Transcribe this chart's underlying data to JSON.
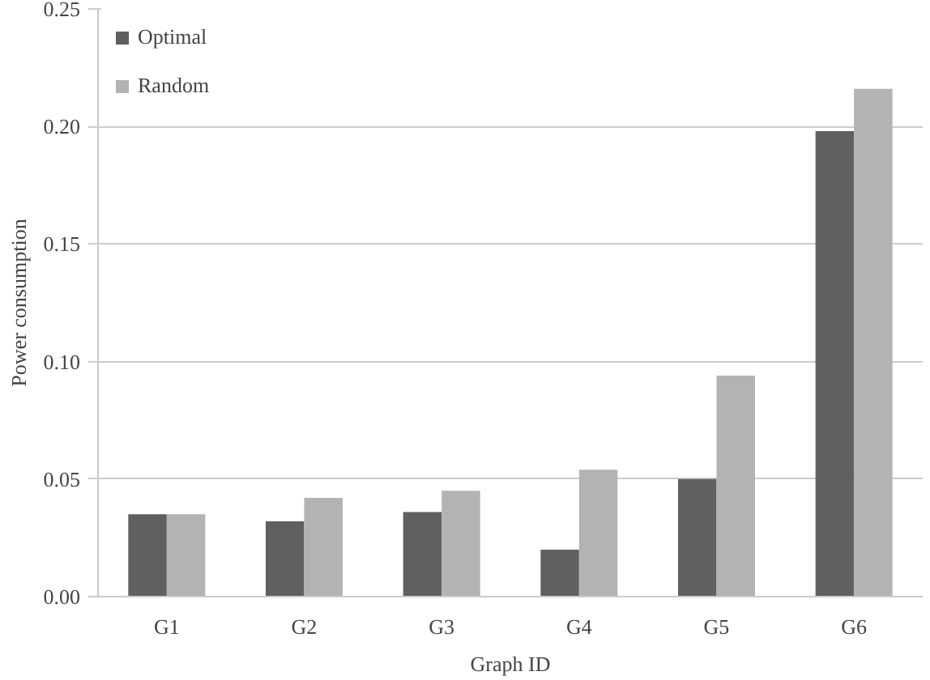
{
  "chart_data": {
    "type": "bar",
    "xlabel": "Graph ID",
    "ylabel": "Power consumption",
    "categories": [
      "G1",
      "G2",
      "G3",
      "G4",
      "G5",
      "G6"
    ],
    "series": [
      {
        "name": "Optimal",
        "color": "#606060",
        "values": [
          0.035,
          0.032,
          0.036,
          0.02,
          0.05,
          0.198
        ]
      },
      {
        "name": "Random",
        "color": "#b3b3b3",
        "values": [
          0.035,
          0.042,
          0.045,
          0.054,
          0.094,
          0.216
        ]
      }
    ],
    "ylim": [
      0,
      0.25
    ],
    "yticks": [
      {
        "value": 0,
        "label": "0.00"
      },
      {
        "value": 0.05,
        "label": "0.05"
      },
      {
        "value": 0.1,
        "label": "0.10"
      },
      {
        "value": 0.15,
        "label": "0.15"
      },
      {
        "value": 0.2,
        "label": "0.20"
      },
      {
        "value": 0.25,
        "label": "0.25"
      }
    ],
    "grid": "y",
    "legend": "top left"
  }
}
